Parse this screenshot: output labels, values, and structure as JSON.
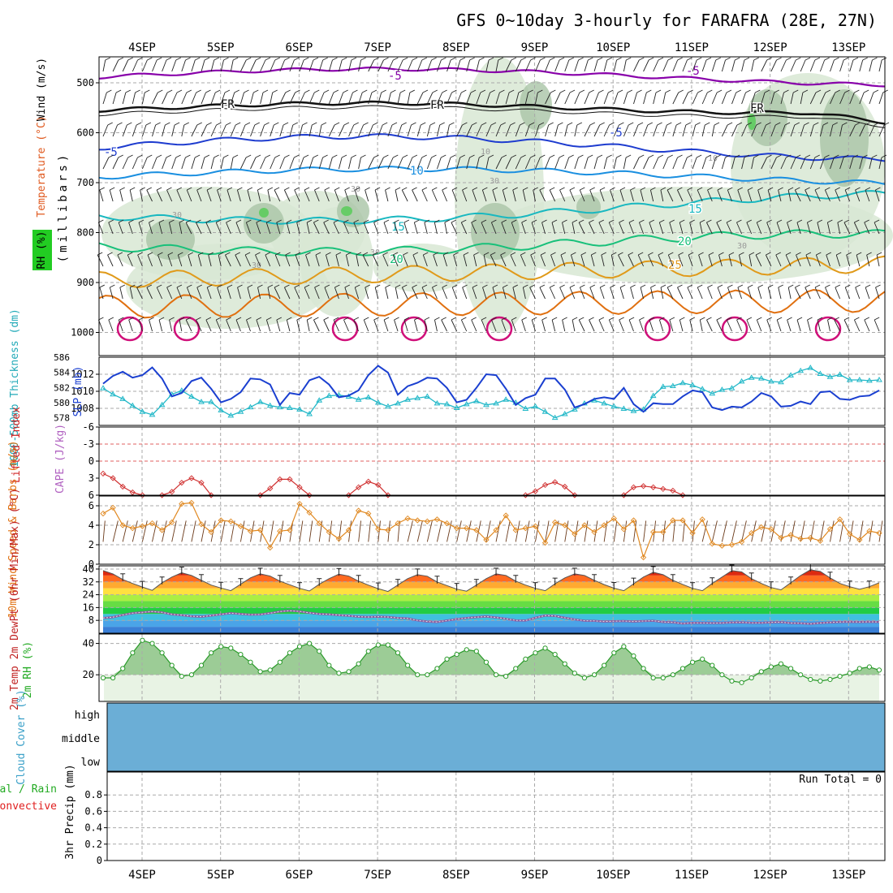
{
  "title": "GFS 0~10day 3-hourly for FARAFRA (28E, 27N)",
  "colors": {
    "rh_fill": "#d8e8d4",
    "rh_dark": "#a9c4a6",
    "temp_purple": "#8800aa",
    "temp_black": "#111111",
    "temp_blue": "#1e3ccf",
    "temp_lightblue": "#1a8fe0",
    "temp_cyan": "#19b8c0",
    "temp_green": "#18c07a",
    "temp_orange": "#e09a1a",
    "temp_darkorange": "#e07010",
    "temp_magenta": "#d0107a",
    "slp": "#1a3fd0",
    "thickness": "#22b8c8",
    "lifted": "#d03030",
    "wind": "#e08820",
    "rh2m": "#2a9a2a",
    "cloud": "#6baed6",
    "grid": "#aaaaaa"
  },
  "chart_data": {
    "type": "line",
    "days": [
      "4SEP",
      "5SEP",
      "6SEP",
      "7SEP",
      "8SEP",
      "9SEP",
      "10SEP",
      "11SEP",
      "12SEP",
      "13SEP"
    ],
    "upper_air": {
      "ylabel": "(millibars)",
      "legend": [
        "Wind (m/s)",
        "Temperature (°C)",
        "RH (%)"
      ],
      "rh_label": "RH (%)",
      "wind_label": "Wind (m/s)",
      "temp_label": "Temperature (°C)",
      "yticks": [
        "500",
        "600",
        "700",
        "800",
        "900",
        "1000"
      ],
      "ylim": [
        1000,
        450
      ],
      "isotherm_labels": [
        "-5",
        "-5",
        "FR",
        "FR",
        "FR",
        "-5",
        "-5",
        "10",
        "15",
        "15",
        "20",
        "20",
        "25"
      ],
      "rh_contour_labels": [
        "10",
        "10",
        "30",
        "30",
        "30",
        "30",
        "30",
        "30"
      ]
    },
    "slp_thickness": {
      "slp_label": "SLP (mb)",
      "thickness_label": "1000-500mb Thickness (dm)",
      "slp_ticks": [
        "1012",
        "1010",
        "1008"
      ],
      "thickness_ticks": [
        "586",
        "584",
        "582",
        "580",
        "578"
      ],
      "slp_ylim": [
        1006,
        1014
      ],
      "thickness_ylim": [
        577,
        586
      ],
      "slp": [
        1010.9,
        1011.8,
        1012.3,
        1011.6,
        1011.9,
        1012.8,
        1011.5,
        1009.4,
        1009.8,
        1011.2,
        1011.6,
        1010.3,
        1008.7,
        1009.1,
        1009.9,
        1011.5,
        1011.4,
        1010.8,
        1008.4,
        1009.8,
        1009.6,
        1011.3,
        1011.7,
        1010.8,
        1009.3,
        1009.5,
        1010.1,
        1011.9,
        1013.0,
        1012.2,
        1009.6,
        1010.6,
        1011.0,
        1011.6,
        1011.5,
        1010.4,
        1008.7,
        1009.0,
        1010.4,
        1012.0,
        1011.9,
        1010.3,
        1008.4,
        1009.2,
        1009.6,
        1011.5,
        1011.5,
        1010.2,
        1008.1,
        1008.5,
        1009.1,
        1009.3,
        1009.1,
        1010.4,
        1008.5,
        1007.6,
        1008.6,
        1008.5,
        1008.5,
        1009.4,
        1010.1,
        1009.9,
        1008.1,
        1007.8,
        1008.2,
        1008.1,
        1008.8,
        1009.8,
        1009.4,
        1008.2,
        1008.3,
        1008.8,
        1008.5,
        1009.9,
        1010.0,
        1009.1,
        1009.0,
        1009.4,
        1009.5,
        1010.1
      ],
      "thickness": [
        581.9,
        581.1,
        580.5,
        579.6,
        578.8,
        578.4,
        579.7,
        581.1,
        581.6,
        580.8,
        580.1,
        580.1,
        579.0,
        578.3,
        578.8,
        579.4,
        580.1,
        579.6,
        579.4,
        579.3,
        579.1,
        578.5,
        580.3,
        580.9,
        581.0,
        580.8,
        580.4,
        580.7,
        580.0,
        579.5,
        579.9,
        580.4,
        580.6,
        580.8,
        579.9,
        579.8,
        579.3,
        579.8,
        580.2,
        579.7,
        579.9,
        580.4,
        580.0,
        579.2,
        579.5,
        578.8,
        578.0,
        578.5,
        579.1,
        579.9,
        580.3,
        579.9,
        579.5,
        579.2,
        578.9,
        579.1,
        580.9,
        582.1,
        582.2,
        582.6,
        582.3,
        581.8,
        581.2,
        581.7,
        581.9,
        582.8,
        583.3,
        583.2,
        582.8,
        582.7,
        583.6,
        584.2,
        584.6,
        583.8,
        583.4,
        583.7,
        583.0,
        583.0,
        582.9,
        583.0
      ]
    },
    "lifted_cape": {
      "lifted_label": "Lifted Index",
      "cape_label": "CAPE (J/kg)",
      "yticks": [
        "-6",
        "-3",
        "0",
        "3",
        "6"
      ],
      "ylim": [
        -6,
        6
      ],
      "lifted_index": [
        2.2,
        3.0,
        4.5,
        5.5,
        6.0,
        6.0,
        6.0,
        5.4,
        3.8,
        3.0,
        3.8,
        6.0,
        6.0,
        6.0,
        6.0,
        6.0,
        6.0,
        4.8,
        3.2,
        3.2,
        4.6,
        6.0,
        6.0,
        6.0,
        6.0,
        6.0,
        4.6,
        3.6,
        4.2,
        6.0,
        6.0,
        6.0,
        6.0,
        6.0,
        6.0,
        6.0,
        6.0,
        6.0,
        6.0,
        6.0,
        6.0,
        6.0,
        6.0,
        6.0,
        5.3,
        4.2,
        3.7,
        4.5,
        6.0,
        6.0,
        6.0,
        6.0,
        6.0,
        6.0,
        4.6,
        4.4,
        4.6,
        4.9,
        5.2,
        6.0,
        6.0,
        6.0,
        6.0,
        6.0,
        6.0,
        6.0,
        6.0,
        6.0,
        6.0,
        6.0,
        6.0,
        6.0,
        6.0,
        6.0,
        6.0,
        6.0,
        6.0,
        6.0,
        6.0,
        6.0
      ]
    },
    "wind_10m": {
      "label": "10m Wind Speed & Barbs (m/s)",
      "yticks": [
        "6",
        "4",
        "2",
        "0"
      ],
      "ylim": [
        0,
        7
      ],
      "speed": [
        5.2,
        5.8,
        4.0,
        3.7,
        3.9,
        4.2,
        3.5,
        4.3,
        6.2,
        6.3,
        4.1,
        3.3,
        4.5,
        4.4,
        3.9,
        3.4,
        3.5,
        1.7,
        3.4,
        3.5,
        6.2,
        5.3,
        4.2,
        3.3,
        2.6,
        3.5,
        5.5,
        5.2,
        3.6,
        3.5,
        4.2,
        4.7,
        4.5,
        4.4,
        4.6,
        4.2,
        3.7,
        3.7,
        3.5,
        2.5,
        3.5,
        5.0,
        3.5,
        3.7,
        3.9,
        2.2,
        4.3,
        4.0,
        3.1,
        4.0,
        3.3,
        4.0,
        4.7,
        3.6,
        4.5,
        0.7,
        3.3,
        3.3,
        4.5,
        4.5,
        3.2,
        4.6,
        2.1,
        1.9,
        2.0,
        2.3,
        3.2,
        3.8,
        3.6,
        2.7,
        3.0,
        2.6,
        2.7,
        2.4,
        3.6,
        4.6,
        3.1,
        2.5,
        3.4,
        3.2
      ]
    },
    "temp_2m": {
      "label": "2m Temp 2m DewPt (6hr Min/Max) (°C)",
      "yticks": [
        "40",
        "32",
        "24",
        "16",
        "8"
      ],
      "ylim": [
        0,
        42
      ],
      "temp": [
        39.0,
        37.0,
        33.5,
        31.0,
        28.8,
        26.7,
        31.5,
        35.0,
        37.7,
        36.0,
        33.0,
        30.0,
        28.2,
        26.5,
        30.5,
        34.5,
        37.0,
        35.6,
        32.5,
        30.2,
        28.0,
        26.3,
        30.5,
        34.0,
        36.8,
        35.6,
        32.5,
        30.0,
        27.8,
        26.0,
        30.0,
        34.0,
        36.5,
        35.5,
        32.0,
        29.7,
        27.5,
        26.2,
        30.0,
        34.0,
        37.0,
        36.0,
        32.5,
        30.0,
        28.0,
        26.5,
        30.8,
        34.5,
        37.0,
        36.0,
        33.0,
        30.3,
        28.1,
        26.5,
        30.8,
        35.0,
        38.0,
        36.5,
        33.0,
        30.4,
        28.0,
        26.5,
        31.0,
        35.0,
        39.0,
        38.2,
        34.0,
        31.0,
        28.5,
        27.0,
        31.5,
        36.0,
        39.5,
        38.5,
        34.5,
        31.0,
        29.0,
        27.4,
        29.0,
        31.5
      ],
      "dewpoint": [
        9.5,
        10.0,
        11.4,
        12.5,
        13.0,
        13.5,
        13.0,
        11.8,
        11.3,
        10.6,
        10.3,
        11.0,
        11.8,
        12.5,
        12.0,
        11.6,
        11.7,
        12.5,
        13.5,
        14.0,
        13.6,
        12.7,
        12.0,
        11.8,
        11.3,
        10.9,
        10.3,
        10.1,
        10.3,
        10.1,
        9.5,
        9.2,
        8.0,
        7.3,
        7.0,
        7.9,
        8.8,
        9.5,
        10.0,
        10.4,
        9.8,
        9.0,
        8.0,
        7.9,
        9.6,
        11.0,
        10.8,
        9.6,
        8.6,
        7.8,
        7.7,
        7.3,
        7.5,
        7.6,
        7.3,
        7.6,
        7.8,
        7.0,
        6.8,
        6.0,
        6.5,
        6.4,
        6.3,
        6.4,
        6.7,
        6.8,
        6.5,
        6.5,
        6.8,
        6.9,
        6.3,
        6.2,
        5.8,
        6.4,
        6.7,
        7.0,
        7.1,
        7.0,
        7.1,
        7.0
      ]
    },
    "rh_2m": {
      "label": "2m RH (%)",
      "yticks": [
        "40",
        "20"
      ],
      "ylim": [
        3,
        46
      ],
      "values": [
        18,
        18,
        24,
        34,
        42,
        40,
        34,
        26,
        19,
        20,
        26,
        34,
        38,
        37,
        33,
        28,
        22,
        23,
        28,
        34,
        38,
        40,
        35,
        26,
        21,
        22,
        27,
        35,
        39,
        39,
        34,
        26,
        20,
        20,
        24,
        30,
        33,
        36,
        35,
        28,
        20,
        19,
        24,
        30,
        34,
        37,
        33,
        27,
        21,
        18,
        20,
        26,
        34,
        38,
        32,
        24,
        18,
        18,
        20,
        24,
        28,
        30,
        26,
        20,
        16,
        15,
        18,
        22,
        25,
        27,
        24,
        20,
        17,
        16,
        17,
        19,
        21,
        24,
        25,
        23
      ]
    },
    "cloud_cover": {
      "label": "Cloud Cover (%)",
      "levels": [
        "high",
        "middle",
        "low"
      ]
    },
    "precip": {
      "label": "3hr Precip (mm)",
      "legend_total": "Total / Rain",
      "legend_conv": "Convective",
      "run_total": "Run Total = 0",
      "yticks": [
        "0.8",
        "0.6",
        "0.4",
        "0.2",
        "0"
      ],
      "ylim": [
        0,
        1.0
      ],
      "values": []
    }
  }
}
